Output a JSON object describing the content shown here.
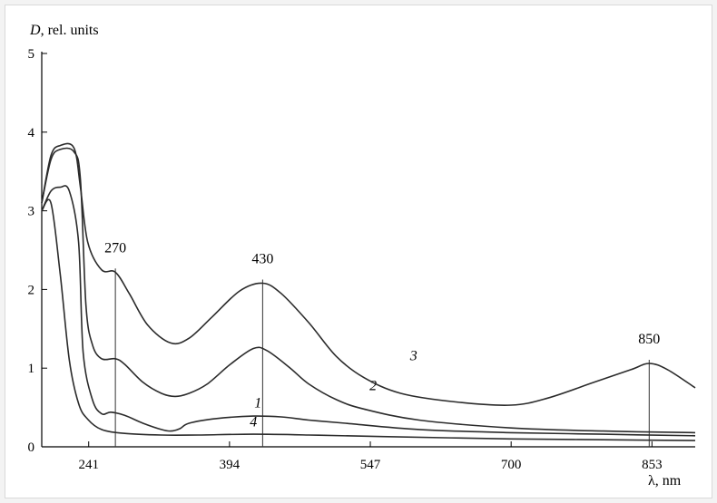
{
  "chart_data": {
    "type": "line",
    "ylabel_var": "D",
    "ylabel_rest": ", rel. units",
    "xlabel": "λ, nm",
    "xlim": [
      190,
      900
    ],
    "ylim": [
      0,
      5
    ],
    "x_ticks": [
      241,
      394,
      547,
      700,
      853
    ],
    "y_ticks": [
      0,
      1,
      2,
      3,
      4,
      5
    ],
    "grid": false,
    "annotations": [
      {
        "x": 270,
        "label": "270",
        "y_top": 2.22
      },
      {
        "x": 430,
        "label": "430",
        "y_top": 2.08
      },
      {
        "x": 850,
        "label": "850",
        "y_top": 1.06
      }
    ],
    "series": [
      {
        "name": "1",
        "label_at": [
          425,
          0.5
        ],
        "points": [
          [
            190,
            3.0
          ],
          [
            200,
            3.25
          ],
          [
            210,
            3.3
          ],
          [
            220,
            3.25
          ],
          [
            230,
            2.6
          ],
          [
            235,
            1.2
          ],
          [
            245,
            0.6
          ],
          [
            255,
            0.42
          ],
          [
            265,
            0.44
          ],
          [
            280,
            0.4
          ],
          [
            300,
            0.3
          ],
          [
            320,
            0.22
          ],
          [
            330,
            0.2
          ],
          [
            340,
            0.23
          ],
          [
            350,
            0.3
          ],
          [
            380,
            0.36
          ],
          [
            420,
            0.39
          ],
          [
            450,
            0.38
          ],
          [
            480,
            0.34
          ],
          [
            520,
            0.3
          ],
          [
            600,
            0.22
          ],
          [
            700,
            0.18
          ],
          [
            800,
            0.16
          ],
          [
            900,
            0.14
          ]
        ]
      },
      {
        "name": "2",
        "label_at": [
          550,
          0.72
        ],
        "points": [
          [
            190,
            3.1
          ],
          [
            200,
            3.65
          ],
          [
            210,
            3.78
          ],
          [
            225,
            3.75
          ],
          [
            232,
            3.4
          ],
          [
            238,
            1.8
          ],
          [
            245,
            1.3
          ],
          [
            255,
            1.12
          ],
          [
            270,
            1.12
          ],
          [
            280,
            1.05
          ],
          [
            300,
            0.82
          ],
          [
            320,
            0.68
          ],
          [
            335,
            0.64
          ],
          [
            350,
            0.68
          ],
          [
            370,
            0.8
          ],
          [
            395,
            1.05
          ],
          [
            420,
            1.25
          ],
          [
            435,
            1.22
          ],
          [
            460,
            1.0
          ],
          [
            480,
            0.8
          ],
          [
            510,
            0.6
          ],
          [
            540,
            0.48
          ],
          [
            600,
            0.34
          ],
          [
            700,
            0.24
          ],
          [
            800,
            0.2
          ],
          [
            900,
            0.18
          ]
        ]
      },
      {
        "name": "3",
        "label_at": [
          594,
          1.1
        ],
        "points": [
          [
            190,
            3.1
          ],
          [
            200,
            3.7
          ],
          [
            210,
            3.83
          ],
          [
            225,
            3.8
          ],
          [
            232,
            3.3
          ],
          [
            240,
            2.6
          ],
          [
            255,
            2.25
          ],
          [
            270,
            2.22
          ],
          [
            285,
            1.95
          ],
          [
            305,
            1.55
          ],
          [
            330,
            1.32
          ],
          [
            350,
            1.38
          ],
          [
            375,
            1.65
          ],
          [
            405,
            1.98
          ],
          [
            430,
            2.08
          ],
          [
            450,
            1.95
          ],
          [
            480,
            1.58
          ],
          [
            510,
            1.15
          ],
          [
            540,
            0.88
          ],
          [
            580,
            0.68
          ],
          [
            640,
            0.57
          ],
          [
            700,
            0.53
          ],
          [
            740,
            0.62
          ],
          [
            790,
            0.82
          ],
          [
            830,
            0.98
          ],
          [
            850,
            1.06
          ],
          [
            870,
            0.98
          ],
          [
            900,
            0.75
          ]
        ]
      },
      {
        "name": "4",
        "label_at": [
          420,
          0.26
        ],
        "points": [
          [
            190,
            3.0
          ],
          [
            200,
            3.1
          ],
          [
            210,
            2.2
          ],
          [
            220,
            1.1
          ],
          [
            230,
            0.55
          ],
          [
            240,
            0.35
          ],
          [
            255,
            0.22
          ],
          [
            280,
            0.17
          ],
          [
            320,
            0.15
          ],
          [
            360,
            0.15
          ],
          [
            420,
            0.16
          ],
          [
            480,
            0.15
          ],
          [
            560,
            0.13
          ],
          [
            700,
            0.1
          ],
          [
            800,
            0.09
          ],
          [
            900,
            0.08
          ]
        ]
      }
    ]
  }
}
